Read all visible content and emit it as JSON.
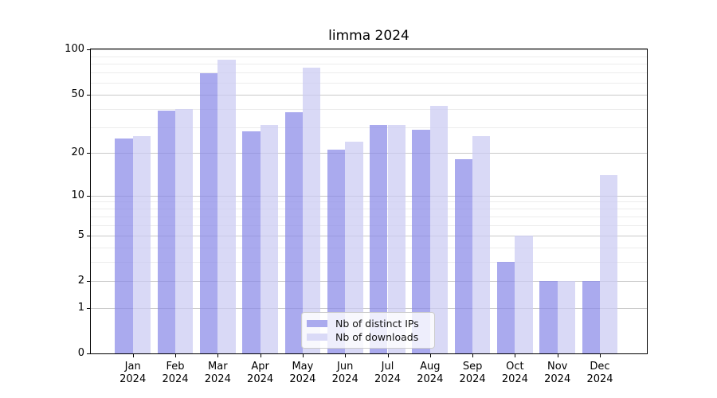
{
  "chart_data": {
    "type": "bar",
    "title": "limma 2024",
    "categories": [
      "Jan",
      "Feb",
      "Mar",
      "Apr",
      "May",
      "Jun",
      "Jul",
      "Aug",
      "Sep",
      "Oct",
      "Nov",
      "Dec"
    ],
    "year_label": "2024",
    "series": [
      {
        "name": "Nb of distinct IPs",
        "color": "#aaaaee",
        "bar_fill": "rgba(137,137,232,0.72)",
        "values": [
          25,
          39,
          69,
          28,
          38,
          21,
          31,
          29,
          18,
          3,
          2,
          2
        ]
      },
      {
        "name": "Nb of downloads",
        "color": "#dadaf7",
        "bar_fill": "rgba(203,203,243,0.72)",
        "values": [
          26,
          40,
          85,
          31,
          76,
          24,
          31,
          42,
          26,
          5,
          2,
          14
        ]
      }
    ],
    "yscale": "log1p",
    "ylim": [
      0,
      100
    ],
    "yticks": [
      0,
      1,
      2,
      5,
      10,
      20,
      50,
      100
    ],
    "minor_gridlines": [
      3,
      4,
      6,
      7,
      8,
      9,
      30,
      40,
      60,
      70,
      80,
      90
    ],
    "grid": "on",
    "legend_position": "lower-center",
    "colors": {
      "major_grid": "#c9c9c9",
      "minor_grid": "#ececec",
      "axis": "#000000",
      "text": "#000000"
    }
  }
}
